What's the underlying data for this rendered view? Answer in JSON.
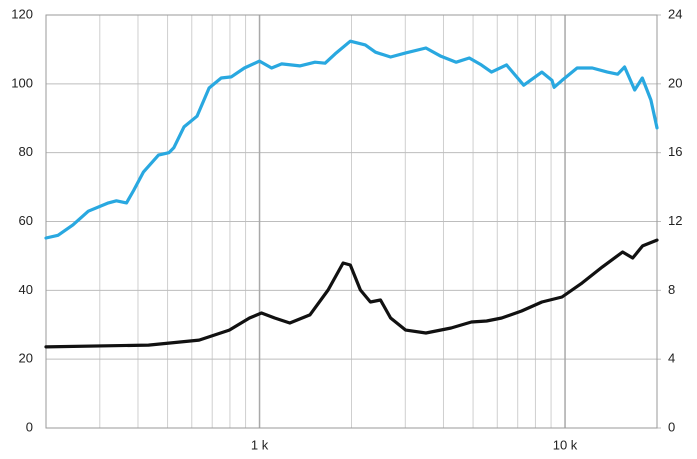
{
  "chart_data": {
    "type": "line",
    "xscale": "log",
    "grid": true,
    "xlim": [
      200,
      20000
    ],
    "xticks": [
      {
        "value": 1000,
        "label": "1 k"
      },
      {
        "value": 10000,
        "label": "10 k"
      }
    ],
    "ylim": [
      0,
      120
    ],
    "yticks": [
      0,
      20,
      40,
      60,
      80,
      100,
      120
    ],
    "y2lim": [
      0,
      24
    ],
    "y2ticks": [
      0,
      4,
      8,
      12,
      16,
      20,
      24
    ],
    "series": [
      {
        "color": "#29a8e0",
        "x": [
          200,
          219,
          245,
          275,
          320,
          340,
          367,
          387,
          417,
          467,
          505,
          524,
          566,
          624,
          684,
          749,
          808,
          892,
          1000,
          1095,
          1182,
          1355,
          1519,
          1639,
          1768,
          1982,
          2220,
          2396,
          2686,
          3010,
          3504,
          3927,
          4402,
          4860,
          5321,
          5743,
          6434,
          7323,
          8397,
          9063,
          9210,
          9775,
          10955,
          12280,
          13760,
          14860,
          15670,
          16900,
          17900,
          19100,
          20000
        ],
        "values": [
          55.2,
          56,
          59,
          63,
          65.4,
          66,
          65.4,
          69,
          74.4,
          79.3,
          80,
          81.4,
          87.5,
          90.6,
          98.8,
          101.7,
          102,
          104.6,
          106.6,
          104.6,
          105.8,
          105.2,
          106.3,
          106,
          108.7,
          112.4,
          111.3,
          109.2,
          107.8,
          109,
          110.4,
          108,
          106.3,
          107.5,
          105.5,
          103.4,
          105.5,
          99.6,
          103.4,
          101,
          99,
          101,
          104.6,
          104.6,
          103.4,
          102.8,
          104.9,
          98.2,
          101.7,
          95.3,
          87.2
        ]
      },
      {
        "color": "#111111",
        "axis": "y2",
        "x": [
          200,
          433,
          634,
          796,
          927,
          1015,
          1121,
          1256,
          1462,
          1676,
          1878,
          1982,
          2138,
          2307,
          2489,
          2686,
          3010,
          3504,
          4238,
          4938,
          5538,
          6205,
          7208,
          8397,
          9775,
          11380,
          13250,
          15430,
          16650,
          17940,
          20000
        ],
        "values": [
          4.71,
          4.82,
          5.11,
          5.69,
          6.39,
          6.68,
          6.39,
          6.1,
          6.57,
          8.02,
          9.59,
          9.47,
          8.02,
          7.32,
          7.44,
          6.39,
          5.69,
          5.52,
          5.81,
          6.16,
          6.22,
          6.39,
          6.8,
          7.32,
          7.61,
          8.43,
          9.36,
          10.23,
          9.88,
          10.58,
          10.92
        ]
      }
    ]
  }
}
